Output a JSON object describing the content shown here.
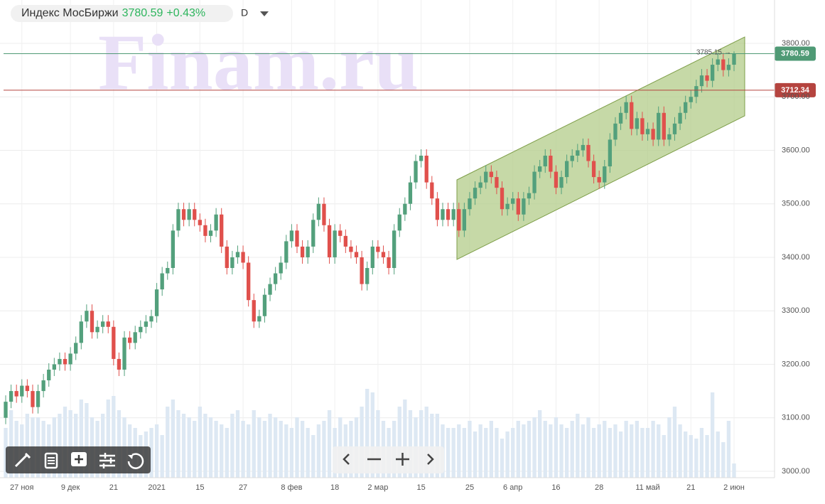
{
  "chart_data": {
    "type": "candlestick",
    "title": "Индекс МосБиржи",
    "change": "+0.43%",
    "period": "D",
    "watermark": "Finam.ru",
    "high_marker": 3785.15,
    "up_color": "#53a07c",
    "down_color": "#e0504c",
    "volume_color": "#dde8f3",
    "grid": true,
    "price_lines": [
      {
        "value": 3780.59,
        "color": "#4f9a75"
      },
      {
        "value": 3712.34,
        "color": "#b5443f"
      }
    ],
    "ylim": [
      2988,
      3881
    ],
    "yticks": [
      {
        "value": 3000,
        "label": "3000.00"
      },
      {
        "value": 3100,
        "label": "3100.00"
      },
      {
        "value": 3200,
        "label": "3200.00"
      },
      {
        "value": 3300,
        "label": "3300.00"
      },
      {
        "value": 3400,
        "label": "3400.00"
      },
      {
        "value": 3500,
        "label": "3500.00"
      },
      {
        "value": 3600,
        "label": "3600.00"
      },
      {
        "value": 3700,
        "label": "3700.00"
      },
      {
        "value": 3800,
        "label": "3800.00"
      }
    ],
    "categories": [
      null,
      null,
      null,
      "27 ноя",
      null,
      null,
      null,
      null,
      null,
      null,
      null,
      null,
      "9 дек",
      null,
      null,
      null,
      null,
      null,
      null,
      null,
      "21",
      null,
      null,
      null,
      null,
      null,
      null,
      null,
      "2021",
      null,
      null,
      null,
      null,
      null,
      null,
      null,
      "15",
      null,
      null,
      null,
      null,
      null,
      null,
      null,
      "27",
      null,
      null,
      null,
      null,
      null,
      null,
      null,
      null,
      "8 фев",
      null,
      null,
      null,
      null,
      null,
      null,
      null,
      "18",
      null,
      null,
      null,
      null,
      null,
      null,
      null,
      "2 мар",
      null,
      null,
      null,
      null,
      null,
      null,
      null,
      "15",
      null,
      null,
      null,
      null,
      null,
      null,
      null,
      null,
      "25",
      null,
      null,
      null,
      null,
      null,
      null,
      null,
      "6 апр",
      null,
      null,
      null,
      null,
      null,
      null,
      null,
      "16",
      null,
      null,
      null,
      null,
      null,
      null,
      null,
      "28",
      null,
      null,
      null,
      null,
      null,
      null,
      null,
      null,
      "11 май",
      null,
      null,
      null,
      null,
      null,
      null,
      null,
      "21",
      null,
      null,
      null,
      null,
      null,
      null,
      null,
      "2 июн"
    ],
    "open": [
      3100,
      3130,
      3150,
      3140,
      3160,
      3150,
      3120,
      3150,
      3170,
      3190,
      3200,
      3210,
      3200,
      3220,
      3240,
      3280,
      3300,
      3260,
      3270,
      3280,
      3270,
      3210,
      3190,
      3250,
      3240,
      3260,
      3270,
      3280,
      3290,
      3340,
      3370,
      3380,
      3450,
      3490,
      3470,
      3490,
      3470,
      3460,
      3440,
      3450,
      3480,
      3420,
      3380,
      3400,
      3410,
      3390,
      3320,
      3280,
      3290,
      3330,
      3350,
      3370,
      3390,
      3430,
      3450,
      3420,
      3400,
      3420,
      3470,
      3500,
      3460,
      3400,
      3450,
      3440,
      3420,
      3410,
      3400,
      3350,
      3380,
      3420,
      3410,
      3400,
      3380,
      3450,
      3480,
      3500,
      3540,
      3580,
      3590,
      3540,
      3510,
      3470,
      3490,
      3470,
      3490,
      3450,
      3490,
      3510,
      3530,
      3540,
      3560,
      3550,
      3530,
      3490,
      3500,
      3510,
      3480,
      3510,
      3520,
      3560,
      3570,
      3590,
      3560,
      3530,
      3550,
      3580,
      3590,
      3600,
      3610,
      3580,
      3550,
      3540,
      3570,
      3620,
      3650,
      3670,
      3690,
      3640,
      3660,
      3630,
      3640,
      3620,
      3670,
      3620,
      3630,
      3650,
      3670,
      3690,
      3700,
      3720,
      3740,
      3730,
      3760,
      3770,
      3750,
      3760
    ],
    "close": [
      3130,
      3150,
      3140,
      3160,
      3150,
      3120,
      3150,
      3170,
      3190,
      3200,
      3210,
      3200,
      3220,
      3240,
      3280,
      3300,
      3260,
      3270,
      3280,
      3270,
      3210,
      3190,
      3250,
      3240,
      3260,
      3270,
      3280,
      3290,
      3340,
      3370,
      3380,
      3450,
      3490,
      3470,
      3490,
      3470,
      3460,
      3440,
      3450,
      3480,
      3420,
      3380,
      3400,
      3410,
      3390,
      3320,
      3280,
      3290,
      3330,
      3350,
      3370,
      3390,
      3430,
      3450,
      3420,
      3400,
      3420,
      3470,
      3500,
      3460,
      3400,
      3450,
      3440,
      3420,
      3410,
      3400,
      3350,
      3380,
      3420,
      3410,
      3400,
      3380,
      3450,
      3480,
      3500,
      3540,
      3580,
      3590,
      3540,
      3510,
      3470,
      3490,
      3470,
      3490,
      3450,
      3490,
      3510,
      3530,
      3540,
      3560,
      3550,
      3530,
      3490,
      3500,
      3510,
      3480,
      3510,
      3520,
      3560,
      3570,
      3590,
      3560,
      3530,
      3550,
      3580,
      3590,
      3600,
      3610,
      3580,
      3550,
      3540,
      3570,
      3620,
      3650,
      3670,
      3690,
      3640,
      3660,
      3630,
      3640,
      3620,
      3670,
      3620,
      3630,
      3650,
      3670,
      3690,
      3700,
      3720,
      3740,
      3730,
      3760,
      3770,
      3750,
      3760,
      3780
    ],
    "high": [
      3142,
      3162,
      3162,
      3172,
      3172,
      3162,
      3162,
      3182,
      3202,
      3212,
      3222,
      3222,
      3232,
      3252,
      3292,
      3312,
      3312,
      3282,
      3292,
      3292,
      3282,
      3222,
      3262,
      3262,
      3272,
      3282,
      3292,
      3302,
      3352,
      3382,
      3392,
      3462,
      3502,
      3502,
      3502,
      3502,
      3482,
      3472,
      3462,
      3492,
      3492,
      3432,
      3412,
      3422,
      3422,
      3402,
      3332,
      3302,
      3342,
      3362,
      3382,
      3402,
      3442,
      3462,
      3462,
      3432,
      3432,
      3482,
      3512,
      3512,
      3472,
      3462,
      3462,
      3452,
      3432,
      3422,
      3412,
      3392,
      3432,
      3432,
      3422,
      3412,
      3462,
      3492,
      3512,
      3552,
      3592,
      3602,
      3602,
      3552,
      3522,
      3502,
      3502,
      3502,
      3502,
      3502,
      3522,
      3542,
      3552,
      3572,
      3572,
      3562,
      3542,
      3512,
      3522,
      3522,
      3522,
      3532,
      3572,
      3582,
      3602,
      3602,
      3572,
      3562,
      3592,
      3602,
      3612,
      3622,
      3622,
      3592,
      3562,
      3582,
      3632,
      3662,
      3682,
      3702,
      3702,
      3672,
      3672,
      3652,
      3652,
      3682,
      3682,
      3642,
      3662,
      3682,
      3702,
      3712,
      3732,
      3752,
      3752,
      3772,
      3782,
      3782,
      3772,
      3785
    ],
    "low": [
      3088,
      3118,
      3128,
      3128,
      3138,
      3108,
      3108,
      3138,
      3158,
      3178,
      3188,
      3188,
      3188,
      3208,
      3228,
      3268,
      3248,
      3248,
      3258,
      3258,
      3198,
      3178,
      3178,
      3228,
      3228,
      3248,
      3258,
      3268,
      3278,
      3328,
      3358,
      3368,
      3438,
      3458,
      3458,
      3458,
      3448,
      3428,
      3428,
      3438,
      3408,
      3368,
      3368,
      3388,
      3378,
      3308,
      3268,
      3268,
      3278,
      3318,
      3338,
      3358,
      3378,
      3418,
      3408,
      3388,
      3388,
      3408,
      3458,
      3448,
      3388,
      3388,
      3428,
      3408,
      3398,
      3388,
      3338,
      3338,
      3368,
      3398,
      3388,
      3368,
      3368,
      3438,
      3468,
      3488,
      3528,
      3568,
      3528,
      3498,
      3458,
      3458,
      3458,
      3458,
      3438,
      3438,
      3478,
      3498,
      3518,
      3528,
      3538,
      3518,
      3478,
      3478,
      3488,
      3468,
      3468,
      3498,
      3508,
      3548,
      3558,
      3548,
      3518,
      3518,
      3538,
      3568,
      3578,
      3588,
      3568,
      3538,
      3528,
      3528,
      3558,
      3608,
      3638,
      3658,
      3628,
      3628,
      3618,
      3618,
      3608,
      3608,
      3608,
      3608,
      3618,
      3638,
      3658,
      3678,
      3688,
      3708,
      3718,
      3718,
      3748,
      3738,
      3738,
      3748
    ],
    "volume": [
      70,
      95,
      80,
      75,
      90,
      85,
      85,
      80,
      75,
      85,
      90,
      100,
      95,
      90,
      110,
      105,
      85,
      80,
      90,
      110,
      115,
      95,
      85,
      75,
      70,
      60,
      65,
      70,
      75,
      60,
      100,
      110,
      95,
      90,
      85,
      80,
      100,
      90,
      85,
      80,
      75,
      70,
      90,
      95,
      80,
      75,
      95,
      85,
      80,
      90,
      85,
      80,
      75,
      70,
      85,
      80,
      70,
      60,
      75,
      80,
      95,
      70,
      85,
      75,
      80,
      85,
      100,
      125,
      120,
      95,
      80,
      70,
      80,
      100,
      110,
      95,
      85,
      95,
      100,
      90,
      90,
      75,
      70,
      70,
      75,
      70,
      80,
      65,
      75,
      70,
      80,
      70,
      55,
      65,
      70,
      80,
      75,
      80,
      85,
      95,
      80,
      75,
      85,
      75,
      70,
      80,
      90,
      75,
      85,
      70,
      75,
      80,
      70,
      75,
      65,
      80,
      75,
      80,
      70,
      70,
      80,
      75,
      60,
      85,
      100,
      75,
      65,
      60,
      55,
      70,
      60,
      120,
      65,
      50,
      80,
      20
    ]
  }
}
